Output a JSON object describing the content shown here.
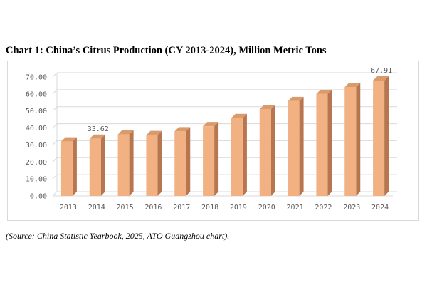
{
  "header": {
    "title": "Chart 1: China’s Citrus Production (CY 2013-2024), Million Metric Tons"
  },
  "footer": {
    "source": "(Source: China Statistic Yearbook, 2025, ATO Guangzhou chart)."
  },
  "chart_data": {
    "type": "bar",
    "title": "Chart 1: China’s Citrus Production (CY 2013-2024), Million Metric Tons",
    "xlabel": "",
    "ylabel": "",
    "categories": [
      "2013",
      "2014",
      "2015",
      "2016",
      "2017",
      "2018",
      "2019",
      "2020",
      "2021",
      "2022",
      "2023",
      "2024"
    ],
    "values": [
      32.0,
      33.62,
      36.2,
      35.8,
      38.0,
      41.0,
      45.8,
      51.0,
      55.8,
      60.0,
      64.0,
      67.91
    ],
    "data_labels": [
      {
        "index": 1,
        "text": "33.62"
      },
      {
        "index": 11,
        "text": "67.91"
      }
    ],
    "ylim": [
      0,
      70
    ],
    "yticks": [
      "0.00",
      "10.00",
      "20.00",
      "30.00",
      "40.00",
      "50.00",
      "60.00",
      "70.00"
    ],
    "ytick_values": [
      0,
      10,
      20,
      30,
      40,
      50,
      60,
      70
    ],
    "grid": true,
    "legend": "none",
    "colors": {
      "bar_front": "#f2b183",
      "bar_side": "#b7764f",
      "bar_top": "#d99a6c",
      "grid": "#d9d9d9",
      "axis_text": "#595959"
    }
  }
}
